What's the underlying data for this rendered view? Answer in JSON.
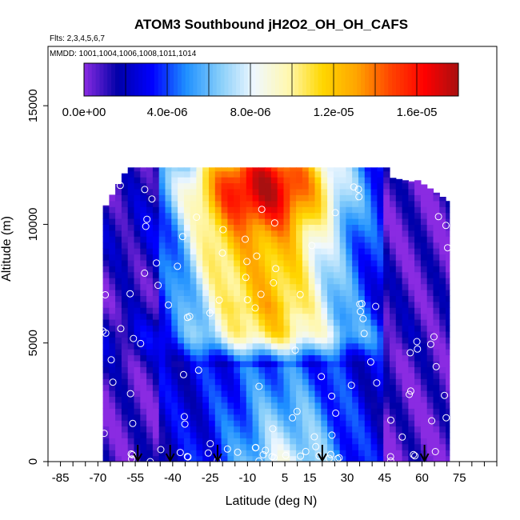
{
  "chart_data": {
    "type": "heatmap",
    "title": "ATOM3 Southbound jH2O2_OH_OH_CAFS",
    "flights_label": "Flts: 2,3,4,5,6,7",
    "dates_label": "MMDD: 1001,1004,1006,1008,1011,1014",
    "xlabel": "Latitude (deg N)",
    "ylabel": "Altitude (m)",
    "xlim": [
      -90,
      90
    ],
    "ylim": [
      0,
      17500
    ],
    "x_ticks": [
      -85,
      -70,
      -55,
      -40,
      -25,
      -10,
      5,
      15,
      30,
      45,
      60,
      75
    ],
    "x_tick_labels": [
      "-85",
      "-70",
      "-55",
      "-40",
      "-25",
      "-10",
      "5",
      "15",
      "30",
      "45",
      "60",
      "75"
    ],
    "y_ticks": [
      0,
      5000,
      10000,
      15000
    ],
    "y_tick_labels": [
      "0",
      "5000",
      "10000",
      "15000"
    ],
    "colorbar": {
      "min": 0,
      "max": 1.8e-05,
      "tick_values": [
        0,
        4e-06,
        8e-06,
        1.2e-05,
        1.6e-05
      ],
      "tick_labels": [
        "0.0e+00",
        "4.0e-06",
        "8.0e-06",
        "1.2e-05",
        "1.6e-05"
      ],
      "colors": [
        "#8a2be2",
        "#0000a8",
        "#0000ff",
        "#1e90ff",
        "#87cefa",
        "#f0f8ff",
        "#fff8b0",
        "#ffd700",
        "#ffa500",
        "#ff4500",
        "#ff0000",
        "#a81010"
      ]
    },
    "arrow_latitudes": [
      -54,
      -41,
      -22,
      20,
      61
    ],
    "coverage": {
      "lat_min": -68,
      "lat_max": 71,
      "alt_max": 12400
    },
    "field_summary": "Low values (blue/purple) south of 45S and north of 45N; high values (orange/red) at 20S-20N above 6 km, peaking near 12 km; moderate values near surface in tropics."
  }
}
